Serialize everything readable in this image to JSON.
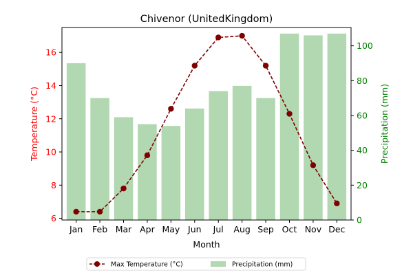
{
  "chart_data": {
    "type": "bar+line",
    "title": "Chivenor (UnitedKingdom)",
    "xlabel": "Month",
    "ylabel_left": "Temperature (°C)",
    "ylabel_right": "Precipitation (mm)",
    "categories": [
      "Jan",
      "Feb",
      "Mar",
      "Apr",
      "May",
      "Jun",
      "Jul",
      "Aug",
      "Sep",
      "Oct",
      "Nov",
      "Dec"
    ],
    "series": [
      {
        "name": "Max Temperature (°C)",
        "type": "line",
        "axis": "left",
        "values": [
          6.4,
          6.4,
          7.8,
          9.8,
          12.6,
          15.2,
          16.9,
          17.0,
          15.2,
          12.3,
          9.2,
          6.9
        ]
      },
      {
        "name": "Precipitation (mm)",
        "type": "bar",
        "axis": "right",
        "values": [
          90,
          70,
          59,
          55,
          54,
          64,
          74,
          77,
          70,
          107,
          106,
          107
        ]
      }
    ],
    "ylim_left": [
      5.9,
      17.5
    ],
    "ylim_right": [
      0,
      110.5
    ],
    "yticks_left": [
      6,
      8,
      10,
      12,
      14,
      16
    ],
    "yticks_right": [
      0,
      20,
      40,
      60,
      80,
      100
    ],
    "grid": false,
    "legend_position": "bottom-center",
    "colors": {
      "temperature_line": "#800000",
      "left_axis": "#ff0000",
      "right_axis": "#008000",
      "precip_bars": "#b2d8b2"
    }
  }
}
